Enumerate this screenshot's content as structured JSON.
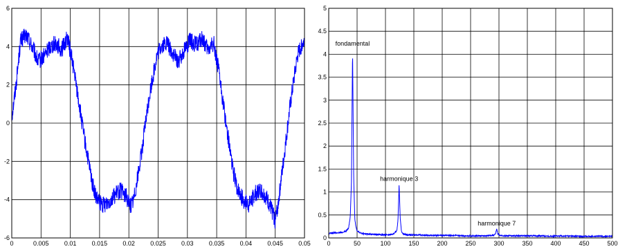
{
  "chart_data": [
    {
      "type": "line",
      "title": "",
      "xlabel": "",
      "ylabel": "",
      "xlim": [
        0,
        0.05
      ],
      "ylim": [
        -6,
        6
      ],
      "xticks": [
        0,
        0.005,
        0.01,
        0.015,
        0.02,
        0.025,
        0.03,
        0.035,
        0.04,
        0.045,
        0.05
      ],
      "xtick_labels": [
        "0",
        "0.005",
        "0.01",
        "0.015",
        "0.02",
        "0.025",
        "0.03",
        "0.035",
        "0.04",
        "0.045",
        "0.05"
      ],
      "yticks": [
        -6,
        -4,
        -2,
        0,
        2,
        4,
        6
      ],
      "ytick_labels": [
        "-6",
        "-4",
        "-2",
        "0",
        "2",
        "4",
        "6"
      ],
      "grid": true,
      "line_color": "#0000ff",
      "series": [
        {
          "x": [
            0,
            0.0008,
            0.0015,
            0.0025,
            0.0035,
            0.0045,
            0.0055,
            0.0065,
            0.0075,
            0.0085,
            0.0095,
            0.0105,
            0.0112,
            0.0118,
            0.0125,
            0.0132,
            0.0138,
            0.0145,
            0.0155,
            0.0165,
            0.0175,
            0.0185,
            0.0195,
            0.0203,
            0.0208,
            0.0215,
            0.0222,
            0.0228,
            0.0235,
            0.0242,
            0.0248,
            0.0255,
            0.0265,
            0.0275,
            0.0285,
            0.0295,
            0.0305,
            0.0315,
            0.0325,
            0.0335,
            0.0345,
            0.0352,
            0.0358,
            0.0365,
            0.0372,
            0.0378,
            0.0385,
            0.0395,
            0.0405,
            0.0415,
            0.0425,
            0.0435,
            0.0445,
            0.045,
            0.0455,
            0.0462,
            0.0468,
            0.0475,
            0.0482,
            0.0488,
            0.0495,
            0.05
          ],
          "y": [
            0.3,
            2.2,
            4.3,
            4.6,
            4.0,
            3.2,
            3.5,
            4.0,
            4.2,
            3.8,
            4.5,
            3.0,
            1.6,
            0.4,
            -1.0,
            -2.2,
            -3.2,
            -4.0,
            -4.3,
            -4.1,
            -3.8,
            -3.5,
            -3.8,
            -4.3,
            -4.0,
            -2.8,
            -1.5,
            -0.1,
            1.4,
            2.6,
            3.5,
            4.0,
            4.2,
            3.6,
            3.2,
            3.9,
            4.3,
            4.1,
            4.4,
            3.8,
            4.2,
            3.0,
            1.7,
            0.2,
            -1.2,
            -2.5,
            -3.4,
            -4.0,
            -4.3,
            -3.7,
            -3.5,
            -3.9,
            -4.6,
            -5.1,
            -4.2,
            -2.5,
            -1.0,
            0.8,
            2.3,
            3.5,
            4.1,
            4.3
          ]
        }
      ]
    },
    {
      "type": "line",
      "title": "",
      "xlabel": "",
      "ylabel": "",
      "xlim": [
        0,
        500
      ],
      "ylim": [
        0,
        5
      ],
      "xticks": [
        0,
        50,
        100,
        150,
        200,
        250,
        300,
        350,
        400,
        450,
        500
      ],
      "xtick_labels": [
        "0",
        "50",
        "100",
        "150",
        "200",
        "250",
        "300",
        "350",
        "400",
        "450",
        "500"
      ],
      "yticks": [
        0,
        0.5,
        1,
        1.5,
        2,
        2.5,
        3,
        3.5,
        4,
        4.5,
        5
      ],
      "ytick_labels": [
        "0",
        "0.5",
        "1",
        "1.5",
        "2",
        "2.5",
        "3",
        "3.5",
        "4",
        "4.5",
        "5"
      ],
      "grid": true,
      "line_color": "#0000ff",
      "series": [
        {
          "x": [
            0,
            10,
            20,
            30,
            35,
            38,
            40,
            42,
            44,
            46,
            48,
            50,
            55,
            60,
            70,
            80,
            90,
            100,
            110,
            115,
            120,
            122,
            124,
            126,
            128,
            130,
            135,
            140,
            150,
            160,
            180,
            200,
            220,
            240,
            260,
            280,
            290,
            294,
            296,
            298,
            302,
            310,
            330,
            350,
            370,
            390,
            410,
            430,
            450,
            470,
            490,
            500
          ],
          "y": [
            0.08,
            0.1,
            0.1,
            0.13,
            0.2,
            0.45,
            1.2,
            4.1,
            1.3,
            0.4,
            0.22,
            0.14,
            0.1,
            0.08,
            0.07,
            0.06,
            0.06,
            0.05,
            0.06,
            0.08,
            0.15,
            0.35,
            1.15,
            0.4,
            0.15,
            0.08,
            0.06,
            0.05,
            0.05,
            0.05,
            0.04,
            0.04,
            0.04,
            0.03,
            0.03,
            0.03,
            0.04,
            0.08,
            0.18,
            0.08,
            0.04,
            0.03,
            0.03,
            0.03,
            0.03,
            0.02,
            0.03,
            0.02,
            0.02,
            0.02,
            0.02,
            0.02
          ]
        }
      ],
      "annotations": [
        {
          "text": "fondamental",
          "x": 42,
          "y": 4.1
        },
        {
          "text": "harmonique 3",
          "x": 124,
          "y": 1.15
        },
        {
          "text": "harmonique 7",
          "x": 296,
          "y": 0.18
        }
      ]
    }
  ]
}
